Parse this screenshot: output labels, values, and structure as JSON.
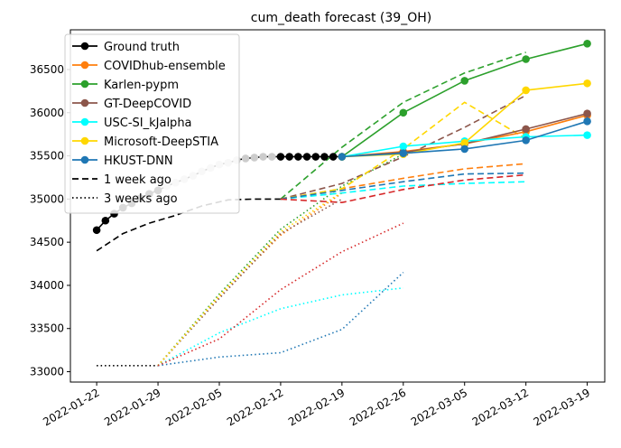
{
  "chart_data": {
    "type": "line",
    "title": "cum_death forecast (39_OH)",
    "xlabel": "",
    "ylabel": "",
    "x_range": [
      "2022-01-19",
      "2022-03-21"
    ],
    "y_range": [
      32880,
      36960
    ],
    "x_ticks": [
      "2022-01-22",
      "2022-01-29",
      "2022-02-05",
      "2022-02-12",
      "2022-02-19",
      "2022-02-26",
      "2022-03-05",
      "2022-03-12",
      "2022-03-19"
    ],
    "y_ticks": [
      33000,
      33500,
      34000,
      34500,
      35000,
      35500,
      36000,
      36500
    ],
    "grid": false,
    "legend_position": "top-left",
    "legend": [
      {
        "label": "Ground truth",
        "color": "#000000",
        "style": "solid",
        "marker": true
      },
      {
        "label": "COVIDhub-ensemble",
        "color": "#ff7f0e",
        "style": "solid",
        "marker": true
      },
      {
        "label": "Karlen-pypm",
        "color": "#2ca02c",
        "style": "solid",
        "marker": true
      },
      {
        "label": "GT-DeepCOVID",
        "color": "#8c564b",
        "style": "solid",
        "marker": true
      },
      {
        "label": "USC-SI_kJalpha",
        "color": "#00ffff",
        "style": "solid",
        "marker": true
      },
      {
        "label": "Microsoft-DeepSTIA",
        "color": "#ffd700",
        "style": "solid",
        "marker": true
      },
      {
        "label": "HKUST-DNN",
        "color": "#1f77b4",
        "style": "solid",
        "marker": true
      },
      {
        "label": "1 week ago",
        "color": "#000000",
        "style": "dashed",
        "marker": false
      },
      {
        "label": "3 weeks ago",
        "color": "#000000",
        "style": "dotted",
        "marker": false
      }
    ],
    "series": [
      {
        "name": "Ground truth",
        "role": "truth",
        "color": "#000000",
        "style": "solid",
        "marker": true,
        "x": [
          "2022-01-22",
          "2022-01-23",
          "2022-01-24",
          "2022-01-25",
          "2022-01-26",
          "2022-01-27",
          "2022-01-28",
          "2022-01-29",
          "2022-01-30",
          "2022-01-31",
          "2022-02-01",
          "2022-02-02",
          "2022-02-03",
          "2022-02-04",
          "2022-02-05",
          "2022-02-06",
          "2022-02-07",
          "2022-02-08",
          "2022-02-09",
          "2022-02-10",
          "2022-02-11",
          "2022-02-12",
          "2022-02-13",
          "2022-02-14",
          "2022-02-15",
          "2022-02-16",
          "2022-02-17",
          "2022-02-18",
          "2022-02-19"
        ],
        "y": [
          34640,
          34750,
          34830,
          34900,
          34950,
          35010,
          35060,
          35100,
          35150,
          35190,
          35230,
          35270,
          35320,
          35360,
          35400,
          35420,
          35450,
          35470,
          35480,
          35490,
          35490,
          35490,
          35490,
          35490,
          35490,
          35490,
          35490,
          35490,
          35490
        ],
        "faded_before": "2022-02-12"
      },
      {
        "name": "Ground truth 1 week ago",
        "color": "#000000",
        "style": "dashed",
        "marker": false,
        "x": [
          "2022-01-22",
          "2022-01-25",
          "2022-01-28",
          "2022-01-31",
          "2022-02-03",
          "2022-02-06",
          "2022-02-09",
          "2022-02-12"
        ],
        "y": [
          34400,
          34600,
          34720,
          34810,
          34920,
          34990,
          35000,
          35000
        ]
      },
      {
        "name": "Ground truth 3 weeks ago",
        "color": "#000000",
        "style": "dotted",
        "marker": false,
        "x": [
          "2022-01-22",
          "2022-01-29"
        ],
        "y": [
          33070,
          33070
        ]
      },
      {
        "name": "COVIDhub-ensemble",
        "color": "#ff7f0e",
        "style": "solid",
        "marker": true,
        "x": [
          "2022-02-19",
          "2022-02-26",
          "2022-03-05",
          "2022-03-12",
          "2022-03-19"
        ],
        "y": [
          35490,
          35550,
          35640,
          35780,
          35970
        ]
      },
      {
        "name": "Karlen-pypm",
        "color": "#2ca02c",
        "style": "solid",
        "marker": true,
        "x": [
          "2022-02-19",
          "2022-02-26",
          "2022-03-05",
          "2022-03-12",
          "2022-03-19"
        ],
        "y": [
          35490,
          36000,
          36370,
          36620,
          36800
        ]
      },
      {
        "name": "GT-DeepCOVID",
        "color": "#8c564b",
        "style": "solid",
        "marker": true,
        "x": [
          "2022-02-19",
          "2022-02-26",
          "2022-03-05",
          "2022-03-12",
          "2022-03-19"
        ],
        "y": [
          35490,
          35540,
          35640,
          35810,
          35990
        ]
      },
      {
        "name": "USC-SI_kJalpha",
        "color": "#00ffff",
        "style": "solid",
        "marker": true,
        "x": [
          "2022-02-19",
          "2022-02-26",
          "2022-03-05",
          "2022-03-12",
          "2022-03-19"
        ],
        "y": [
          35490,
          35610,
          35670,
          35720,
          35740
        ]
      },
      {
        "name": "Microsoft-DeepSTIA",
        "color": "#ffd700",
        "style": "solid",
        "marker": true,
        "x": [
          "2022-02-19",
          "2022-02-26",
          "2022-03-05",
          "2022-03-12",
          "2022-03-19"
        ],
        "y": [
          35490,
          35520,
          35650,
          36260,
          36340
        ]
      },
      {
        "name": "HKUST-DNN",
        "color": "#1f77b4",
        "style": "solid",
        "marker": true,
        "x": [
          "2022-02-19",
          "2022-02-26",
          "2022-03-05",
          "2022-03-12",
          "2022-03-19"
        ],
        "y": [
          35490,
          35530,
          35580,
          35680,
          35900
        ]
      },
      {
        "name": "COVIDhub-ensemble 1 week ago",
        "color": "#ff7f0e",
        "style": "dashed",
        "marker": false,
        "x": [
          "2022-02-12",
          "2022-02-19",
          "2022-02-26",
          "2022-03-05",
          "2022-03-12"
        ],
        "y": [
          35000,
          35120,
          35240,
          35350,
          35410
        ]
      },
      {
        "name": "Karlen-pypm 1 week ago",
        "color": "#2ca02c",
        "style": "dashed",
        "marker": false,
        "x": [
          "2022-02-12",
          "2022-02-19",
          "2022-02-26",
          "2022-03-05",
          "2022-03-12"
        ],
        "y": [
          35000,
          35600,
          36120,
          36460,
          36700
        ]
      },
      {
        "name": "GT-DeepCOVID 1 week ago",
        "color": "#8c564b",
        "style": "dashed",
        "marker": false,
        "x": [
          "2022-02-12",
          "2022-02-19",
          "2022-02-26",
          "2022-03-05",
          "2022-03-12"
        ],
        "y": [
          35000,
          35180,
          35490,
          35830,
          36200
        ]
      },
      {
        "name": "USC-SI_kJalpha 1 week ago",
        "color": "#00ffff",
        "style": "dashed",
        "marker": false,
        "x": [
          "2022-02-12",
          "2022-02-19",
          "2022-02-26",
          "2022-03-05",
          "2022-03-12"
        ],
        "y": [
          35000,
          35070,
          35150,
          35180,
          35200
        ]
      },
      {
        "name": "Microsoft-DeepSTIA 1 week ago",
        "color": "#ffd700",
        "style": "dashed",
        "marker": false,
        "x": [
          "2022-02-12",
          "2022-02-19",
          "2022-02-26",
          "2022-03-05",
          "2022-03-12"
        ],
        "y": [
          35000,
          35120,
          35580,
          36120,
          35700
        ]
      },
      {
        "name": "HKUST-DNN 1 week ago",
        "color": "#1f77b4",
        "style": "dashed",
        "marker": false,
        "x": [
          "2022-02-12",
          "2022-02-19",
          "2022-02-26",
          "2022-03-05",
          "2022-03-12"
        ],
        "y": [
          35000,
          35100,
          35200,
          35290,
          35300
        ]
      },
      {
        "name": "Other 1 week ago",
        "color": "#d62728",
        "style": "dashed",
        "marker": false,
        "x": [
          "2022-02-12",
          "2022-02-19",
          "2022-02-26",
          "2022-03-05",
          "2022-03-12"
        ],
        "y": [
          35000,
          34960,
          35110,
          35220,
          35280
        ]
      },
      {
        "name": "COVIDhub-ensemble 3 weeks ago",
        "color": "#ff7f0e",
        "style": "dotted",
        "marker": false,
        "x": [
          "2022-01-29",
          "2022-02-05",
          "2022-02-12",
          "2022-02-19"
        ],
        "y": [
          33070,
          33870,
          34580,
          35070
        ]
      },
      {
        "name": "Karlen-pypm 3 weeks ago",
        "color": "#2ca02c",
        "style": "dotted",
        "marker": false,
        "x": [
          "2022-01-29",
          "2022-02-05",
          "2022-02-12",
          "2022-02-19",
          "2022-02-26"
        ],
        "y": [
          33070,
          33900,
          34650,
          35150,
          35520
        ]
      },
      {
        "name": "GT-DeepCOVID 3 weeks ago",
        "color": "#8c564b",
        "style": "dotted",
        "marker": false,
        "x": [
          "2022-01-29",
          "2022-02-05",
          "2022-02-12",
          "2022-02-19"
        ],
        "y": [
          33070,
          33850,
          34600,
          35000
        ]
      },
      {
        "name": "USC-SI_kJalpha 3 weeks ago",
        "color": "#00ffff",
        "style": "dotted",
        "marker": false,
        "x": [
          "2022-01-29",
          "2022-02-05",
          "2022-02-12",
          "2022-02-19",
          "2022-02-26"
        ],
        "y": [
          33070,
          33450,
          33730,
          33890,
          33970
        ]
      },
      {
        "name": "Microsoft-DeepSTIA 3 weeks ago",
        "color": "#ffd700",
        "style": "dotted",
        "marker": false,
        "x": [
          "2022-01-29",
          "2022-02-05",
          "2022-02-12",
          "2022-02-19"
        ],
        "y": [
          33070,
          33880,
          34620,
          35080
        ]
      },
      {
        "name": "HKUST-DNN 3 weeks ago",
        "color": "#1f77b4",
        "style": "dotted",
        "marker": false,
        "x": [
          "2022-01-29",
          "2022-02-05",
          "2022-02-12",
          "2022-02-19",
          "2022-02-26"
        ],
        "y": [
          33070,
          33170,
          33220,
          33490,
          34150
        ]
      },
      {
        "name": "Other 3 weeks ago",
        "color": "#d62728",
        "style": "dotted",
        "marker": false,
        "x": [
          "2022-01-29",
          "2022-02-05",
          "2022-02-12",
          "2022-02-19",
          "2022-02-26"
        ],
        "y": [
          33070,
          33380,
          33950,
          34390,
          34720
        ]
      }
    ]
  }
}
